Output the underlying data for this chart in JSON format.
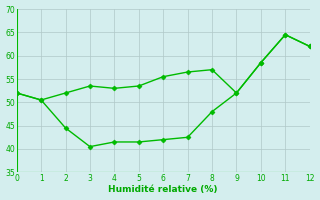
{
  "line1_x": [
    0,
    1,
    2,
    3,
    4,
    5,
    6,
    7,
    8,
    9,
    10,
    11,
    12
  ],
  "line1_y": [
    52,
    50.5,
    52,
    53.5,
    53,
    53.5,
    55.5,
    56.5,
    57,
    52,
    58.5,
    64.5,
    62
  ],
  "line2_x": [
    0,
    1,
    2,
    3,
    4,
    5,
    6,
    7,
    8,
    9,
    10,
    11,
    12
  ],
  "line2_y": [
    52,
    50.5,
    44.5,
    40.5,
    41.5,
    41.5,
    42,
    42.5,
    48,
    52,
    58.5,
    64.5,
    62
  ],
  "line_color": "#00bb00",
  "bg_color": "#d4eeee",
  "grid_color": "#b0c8c8",
  "xlabel": "Humidité relative (%)",
  "xlabel_color": "#00aa00",
  "tick_color": "#00aa00",
  "ylim": [
    35,
    70
  ],
  "xlim": [
    0,
    12
  ],
  "yticks": [
    35,
    40,
    45,
    50,
    55,
    60,
    65,
    70
  ],
  "xticks": [
    0,
    1,
    2,
    3,
    4,
    5,
    6,
    7,
    8,
    9,
    10,
    11,
    12
  ],
  "marker": "D",
  "markersize": 2.5,
  "linewidth": 1.0,
  "tick_labelsize": 5.5,
  "xlabel_fontsize": 6.5
}
